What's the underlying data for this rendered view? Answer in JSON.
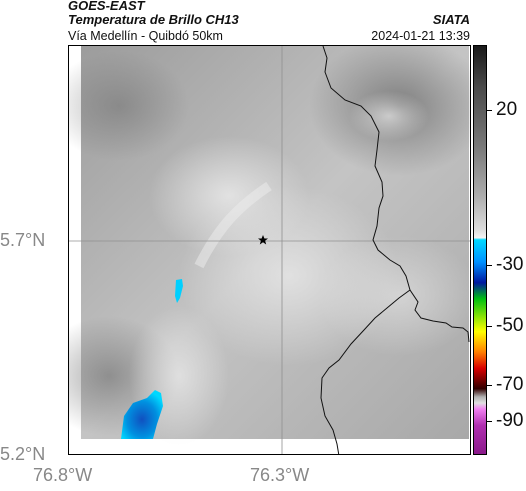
{
  "header": {
    "satellite": "GOES-EAST",
    "product": "Temperatura de Brillo CH13",
    "organization": "SIATA",
    "route": "Vía Medellín - Quibdó 50km",
    "datetime": "2024-01-21 13:39"
  },
  "map": {
    "lat_labels": [
      "5.7°N",
      "5.2°N"
    ],
    "lon_labels": [
      "76.8°W",
      "76.3°W"
    ],
    "marker": "star",
    "colors": {
      "grid": "#909090",
      "border": "#000000",
      "cold_cloud": "#00c8ff"
    }
  },
  "colorbar": {
    "labels": [
      "20",
      "-30",
      "-50",
      "-70",
      "-90"
    ]
  }
}
